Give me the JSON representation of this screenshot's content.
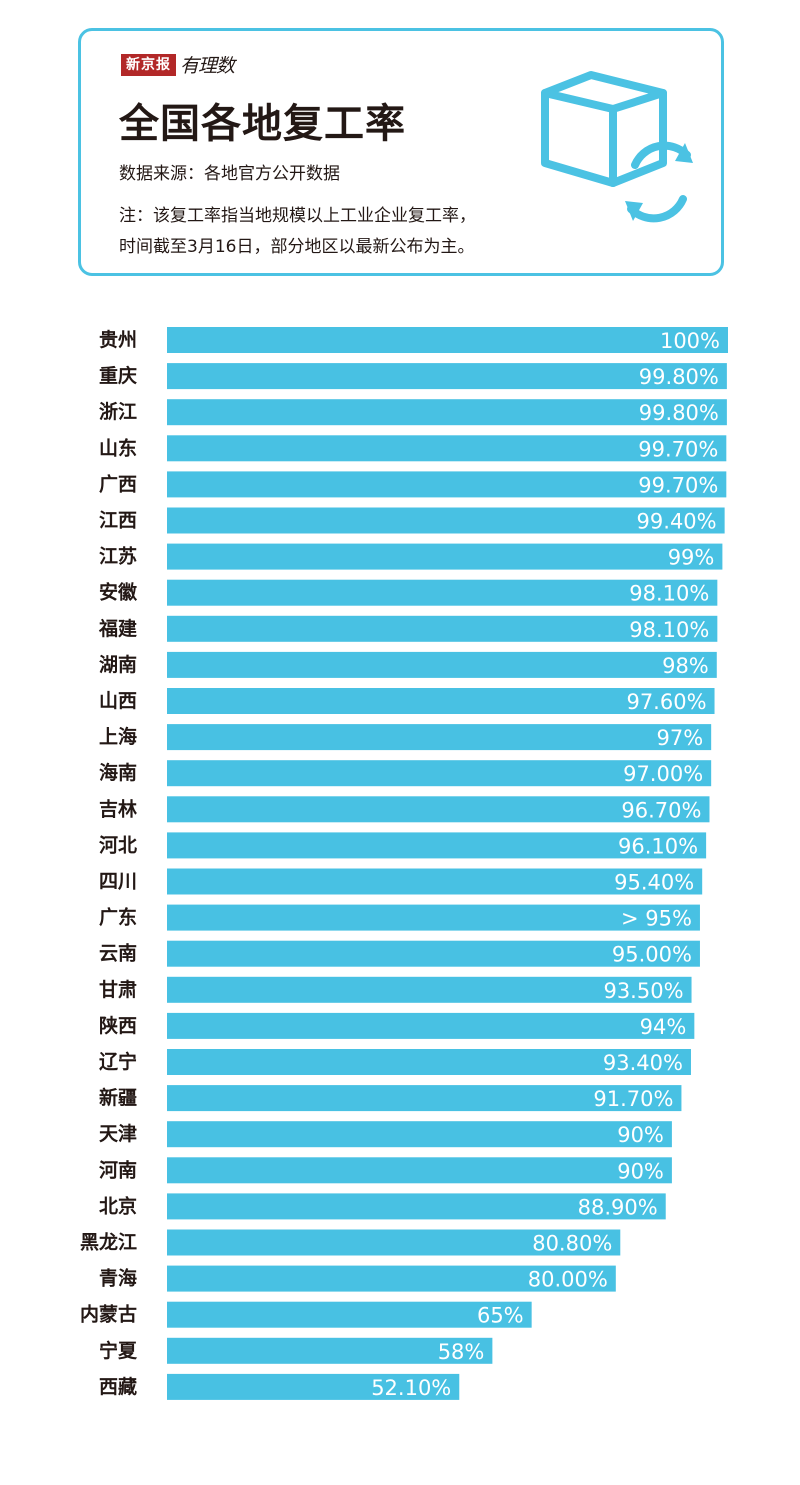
{
  "header": {
    "brand_logo": "新京报",
    "brand_sub": "有理数",
    "title": "全国各地复工率",
    "source": "数据来源：各地官方公开数据",
    "note_line1": "注：该复工率指当地规模以上工业企业复工率，",
    "note_line2": "时间截至3月16日，部分地区以最新公布为主。",
    "icon": "box-refresh-icon"
  },
  "colors": {
    "bar": "#48c1e3",
    "frame": "#4bc2e3",
    "brand": "#b22828",
    "text": "#231815"
  },
  "chart_data": {
    "type": "bar",
    "orientation": "horizontal",
    "title": "全国各地复工率",
    "xlim": [
      0,
      100
    ],
    "grid": false,
    "categories": [
      "贵州",
      "重庆",
      "浙江",
      "山东",
      "广西",
      "江西",
      "江苏",
      "安徽",
      "福建",
      "湖南",
      "山西",
      "上海",
      "海南",
      "吉林",
      "河北",
      "四川",
      "广东",
      "云南",
      "甘肃",
      "陕西",
      "辽宁",
      "新疆",
      "天津",
      "河南",
      "北京",
      "黑龙江",
      "青海",
      "内蒙古",
      "宁夏",
      "西藏"
    ],
    "values": [
      100,
      99.8,
      99.8,
      99.7,
      99.7,
      99.4,
      99,
      98.1,
      98.1,
      98,
      97.6,
      97,
      97.0,
      96.7,
      96.1,
      95.4,
      95,
      95.0,
      93.5,
      94,
      93.4,
      91.7,
      90,
      90,
      88.9,
      80.8,
      80.0,
      65,
      58,
      52.1
    ],
    "labels": [
      "100%",
      "99.80%",
      "99.80%",
      "99.70%",
      "99.70%",
      "99.40%",
      "99%",
      "98.10%",
      "98.10%",
      "98%",
      "97.60%",
      "97%",
      "97.00%",
      "96.70%",
      "96.10%",
      "95.40%",
      "> 95%",
      "95.00%",
      "93.50%",
      "94%",
      "93.40%",
      "91.70%",
      "90%",
      "90%",
      "88.90%",
      "80.80%",
      "80.00%",
      "65%",
      "58%",
      "52.10%"
    ]
  }
}
